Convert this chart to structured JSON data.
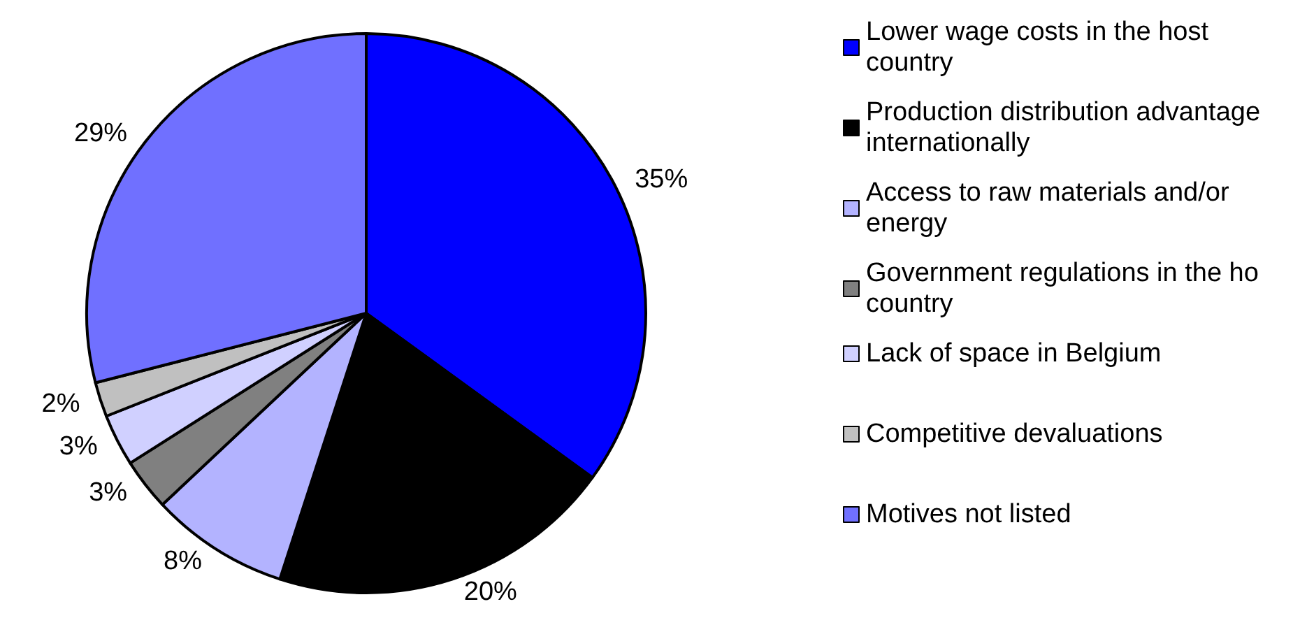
{
  "chart_data": {
    "type": "pie",
    "categories": [
      "Lower wage costs in the host country",
      "Production distribution advantage internationally",
      "Access to raw materials and/or energy",
      "Government regulations in the ho country",
      "Lack of space in Belgium",
      "Competitive devaluations",
      "Motives not listed"
    ],
    "values": [
      35,
      20,
      8,
      3,
      3,
      2,
      29
    ],
    "value_labels": [
      "35%",
      "20%",
      "8%",
      "3%",
      "3%",
      "2%",
      "29%"
    ],
    "colors": [
      "#0000ff",
      "#000000",
      "#b3b3ff",
      "#808080",
      "#d0d0ff",
      "#c0c0c0",
      "#7070ff"
    ],
    "legend": "right"
  }
}
